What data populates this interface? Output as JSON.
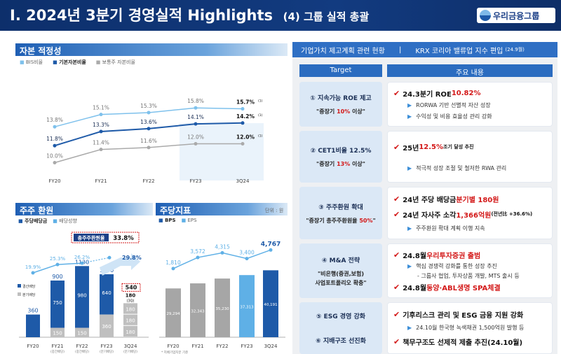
{
  "header": {
    "title": "I. 2024년 3분기 경영실적 Highlights",
    "subtitle": "(4) 그룹 실적 총괄",
    "logo": "우리금융그룹"
  },
  "capital": {
    "section": "자본 적정성",
    "legend": [
      "BIS비율",
      "기본자본비율",
      "보통주 자본비율"
    ],
    "chart_data": {
      "type": "line",
      "categories": [
        "FY20",
        "FY21",
        "FY22",
        "FY23",
        "3Q24"
      ],
      "series": [
        {
          "name": "BIS비율",
          "values": [
            13.8,
            15.1,
            15.3,
            15.8,
            15.7
          ],
          "labels": [
            "13.8%",
            "15.1%",
            "15.3%",
            "15.8%",
            "15.7%"
          ]
        },
        {
          "name": "기본자본비율",
          "values": [
            11.8,
            13.3,
            13.6,
            14.1,
            14.2
          ],
          "labels": [
            "11.8%",
            "13.3%",
            "13.6%",
            "14.1%",
            "14.2%"
          ]
        },
        {
          "name": "보통주 자본비율",
          "values": [
            10.0,
            11.4,
            11.6,
            12.0,
            12.0
          ],
          "labels": [
            "10.0%",
            "11.4%",
            "11.6%",
            "12.0%",
            "12.0%"
          ]
        }
      ],
      "footnote": "(1)"
    }
  },
  "returns": {
    "section": "주주 환원",
    "legend": [
      "주당배당금",
      "배당성향"
    ],
    "sub_legend": [
      "결산배당",
      "분기배당"
    ],
    "highlight_label": "총주주환원율",
    "highlight_value": "33.8%",
    "q24_box": "540",
    "chart_data": {
      "type": "bar",
      "categories": [
        "FY20",
        "FY21",
        "FY22",
        "FY23",
        "3Q24"
      ],
      "sub_categories": [
        "",
        "(중간배당)",
        "(중간배당)",
        "(분기배당)",
        "(분기배당)"
      ],
      "totals": [
        360,
        900,
        1130,
        1000,
        null
      ],
      "final_dividend": [
        360,
        750,
        980,
        640,
        null
      ],
      "interim_dividend": [
        0,
        150,
        150,
        360,
        null
      ],
      "q24_stack": [
        180,
        180,
        180
      ],
      "q24_labels": [
        "180",
        "180",
        "180"
      ],
      "q24_note": "(3Q)",
      "payout": [
        19.9,
        25.3,
        26.2,
        null,
        29.8
      ],
      "payout_labels": [
        "19.9%",
        "25.3%",
        "26.2%",
        "",
        "29.8%"
      ],
      "seg_labels": {
        "FY21": [
          "750",
          "150"
        ],
        "FY22": [
          "980",
          "150"
        ],
        "FY23": [
          "640",
          "360"
        ]
      }
    }
  },
  "pershare": {
    "section": "주당지표",
    "unit": "단위 : 원",
    "legend": [
      "BPS",
      "EPS"
    ],
    "note": "* 지배기업지분 기준",
    "chart_data": {
      "type": "bar",
      "categories": [
        "FY20",
        "FY21",
        "FY22",
        "FY23",
        "3Q24"
      ],
      "bps": [
        29294,
        32343,
        35230,
        37313,
        40191
      ],
      "bps_labels": [
        "29,294",
        "32,343",
        "35,230",
        "37,313",
        "40,191"
      ],
      "eps": [
        1810,
        3572,
        4315,
        3400,
        4767
      ],
      "eps_labels": [
        "1,810",
        "3,572",
        "4,315",
        "3,400",
        "4,767"
      ]
    }
  },
  "plan": {
    "section_left": "기업가치 제고계획 관련 현황",
    "section_right": "KRX 코리아 밸류업 지수 편입",
    "section_right_note": "(24.9월)",
    "col_target": "Target",
    "col_main": "주요 내용",
    "rows": [
      {
        "t1": "① 지속가능 ROE 제고",
        "t2a": "\"중장기 ",
        "t2r": "10%",
        "t2b": " 이상\"",
        "lines": [
          {
            "k": "h",
            "a": "24.3분기 ROE ",
            "r": "10.82%",
            "b": ""
          },
          {
            "k": "s",
            "a": "RORWA 기반 선별적 자산 성장"
          },
          {
            "k": "s",
            "a": "수익성 및 비용 효율성 관리 강화"
          }
        ]
      },
      {
        "t1": "② CET1비율 12.5%",
        "t2a": "\"중장기 ",
        "t2r": "13%",
        "t2b": " 이상\"",
        "lines": [
          {
            "k": "h",
            "a": "25년 ",
            "r": "12.5%",
            "b": " 조기 달성 추진"
          },
          {
            "k": "s",
            "a": "적극적 성장 조절 및 철저한 RWA 관리"
          }
        ]
      },
      {
        "t1": "③ 주주환원 확대",
        "t2a": "\"중장기 총주주환원율 ",
        "t2r": "50%",
        "t2b": "\"",
        "lines": [
          {
            "k": "h",
            "a": "24년 주당 배당금 ",
            "r": "분기별 180원",
            "b": ""
          },
          {
            "k": "h",
            "a": "24년 자사주 소각 ",
            "r": "1,366억원",
            "b": " (전년比 +36.6%)"
          },
          {
            "k": "s",
            "a": "주주환원 확대 계획 이행 지속"
          }
        ]
      },
      {
        "t1": "④ M&A 전략",
        "t2a": "\"비은행(증권,보험)",
        "t2r": "",
        "t2b": "",
        "t3": "사업포트폴리오 확충\"",
        "lines": [
          {
            "k": "h",
            "a": "24.8월 ",
            "r": "우리투자증권 출범",
            "b": ""
          },
          {
            "k": "s",
            "a": "핵심 경쟁력 강화를 통한 성장 추진"
          },
          {
            "k": "s2",
            "a": "- 그룹사 협업, 투자상품 개발, MTS 출시 등"
          },
          {
            "k": "h",
            "a": "24.8월 ",
            "r": "동양·ABL생명 SPA체결",
            "b": ""
          }
        ]
      },
      {
        "t1": "⑤ ESG 경영 강화",
        "t2a": "",
        "t2r": "",
        "t2b": "",
        "t4": "⑥ 지배구조 선진화",
        "lines": [
          {
            "k": "h",
            "a": "기후리스크 관리 및 ESG 금융 지원 강화",
            "r": "",
            "b": ""
          },
          {
            "k": "s",
            "a": "24.10월 한국형 녹색채권 1,500억원 발행 등"
          },
          {
            "k": "h",
            "a": "책무구조도 선제적 제출 추진 ",
            "r": "",
            "b": "(24.10월)"
          }
        ]
      }
    ]
  },
  "colors": {
    "navy": "#0d2f6b",
    "blue": "#1e5aa8",
    "light": "#5fb0e6",
    "gray": "#a8a8a8",
    "red": "#d31818"
  }
}
